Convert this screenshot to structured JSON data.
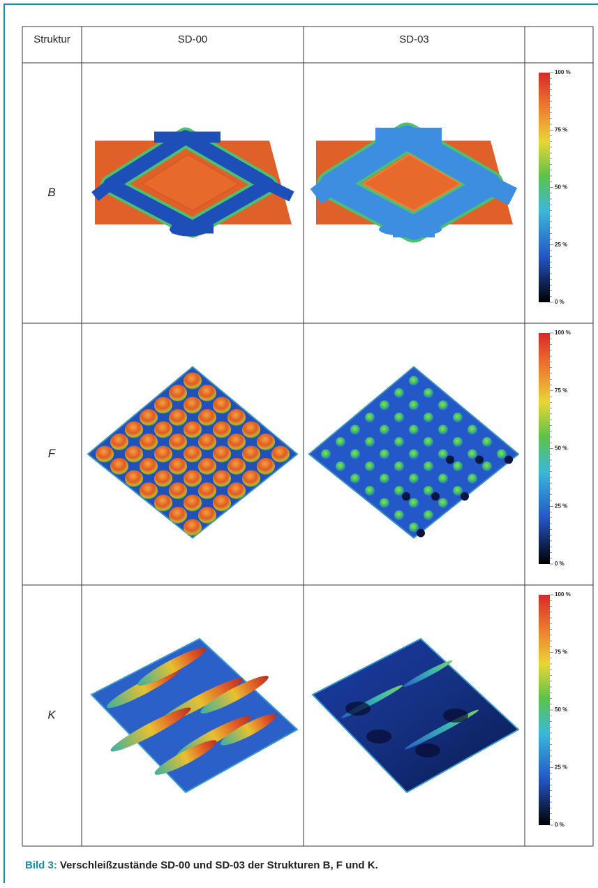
{
  "table": {
    "header": [
      "Struktur",
      "SD-00",
      "SD-03"
    ],
    "rows": [
      {
        "label": "B",
        "scale": [
          "100 %",
          "75 %",
          "50 %",
          "25 %",
          "0 %"
        ]
      },
      {
        "label": "F",
        "scale": [
          "100 %",
          "75 %",
          "50 %",
          "25 %",
          "0 %"
        ]
      },
      {
        "label": "K",
        "scale": [
          "100 %",
          "75 %",
          "50 %",
          "25 %",
          "0 %"
        ]
      }
    ]
  },
  "caption": {
    "label": "Bild 3:",
    "text": "Verschleißzustände SD-00 und SD-03 der Strukturen B, F und K."
  }
}
